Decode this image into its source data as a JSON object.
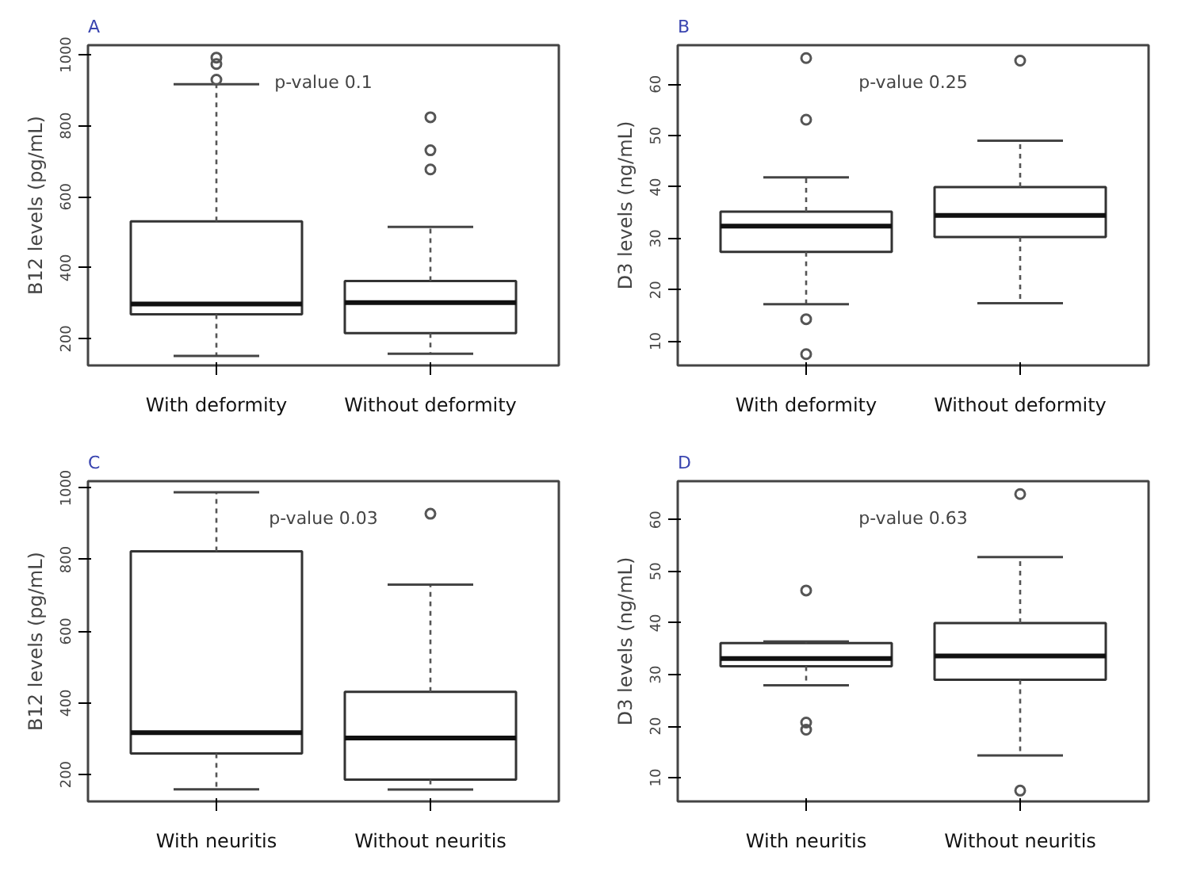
{
  "chart_data": [
    {
      "type": "box",
      "title": "A",
      "ylabel": "B12 levels (pg/mL)",
      "categories": [
        "With deformity",
        "Without deformity"
      ],
      "ylim": [
        125,
        1027
      ],
      "yticks": [
        200,
        400,
        600,
        800,
        1000
      ],
      "grid": false,
      "annotations": [
        "p-value 0.1"
      ],
      "boxes": [
        {
          "low": 152,
          "q1": 269,
          "median": 298,
          "q3": 531,
          "high": 917,
          "outliers": [
            930,
            974,
            992
          ]
        },
        {
          "low": 158,
          "q1": 216,
          "median": 302,
          "q3": 363,
          "high": 515,
          "outliers": [
            677,
            731,
            824
          ]
        }
      ]
    },
    {
      "type": "box",
      "title": "B",
      "ylabel": "D3 levels (ng/mL)",
      "categories": [
        "With deformity",
        "Without deformity"
      ],
      "ylim": [
        5.3,
        67.6
      ],
      "yticks": [
        10,
        20,
        30,
        40,
        50,
        60
      ],
      "grid": false,
      "annotations": [
        "p-value 0.25"
      ],
      "boxes": [
        {
          "low": 17.2,
          "q1": 27.4,
          "median": 32.4,
          "q3": 35.2,
          "high": 41.9,
          "outliers": [
            7.5,
            14.3,
            53.1,
            65.1
          ]
        },
        {
          "low": 17.4,
          "q1": 30.3,
          "median": 34.5,
          "q3": 40,
          "high": 49,
          "outliers": [
            64.6
          ]
        }
      ]
    },
    {
      "type": "box",
      "title": "C",
      "ylabel": "B12 levels (pg/mL)",
      "categories": [
        "With neuritis",
        "Without neuritis"
      ],
      "ylim": [
        125,
        1019
      ],
      "yticks": [
        200,
        400,
        600,
        800,
        1000
      ],
      "grid": false,
      "annotations": [
        "p-value 0.03"
      ],
      "boxes": [
        {
          "low": 159,
          "q1": 259,
          "median": 317,
          "q3": 823,
          "high": 988
        },
        {
          "low": 158,
          "q1": 186,
          "median": 302,
          "q3": 431,
          "high": 730,
          "outliers": [
            928
          ]
        }
      ]
    },
    {
      "type": "box",
      "title": "D",
      "ylabel": "D3 levels (ng/mL)",
      "categories": [
        "With neuritis",
        "Without neuritis"
      ],
      "ylim": [
        5.4,
        67.5
      ],
      "yticks": [
        10,
        20,
        30,
        40,
        50,
        60
      ],
      "grid": false,
      "annotations": [
        "p-value 0.63"
      ],
      "boxes": [
        {
          "low": 27.9,
          "q1": 31.6,
          "median": 33.1,
          "q3": 36.1,
          "high": 36.4,
          "outliers": [
            19.3,
            20.7,
            46.3
          ]
        },
        {
          "low": 14.3,
          "q1": 29,
          "median": 33.6,
          "q3": 40,
          "high": 52.8,
          "outliers": [
            7.5,
            65
          ]
        }
      ]
    }
  ]
}
